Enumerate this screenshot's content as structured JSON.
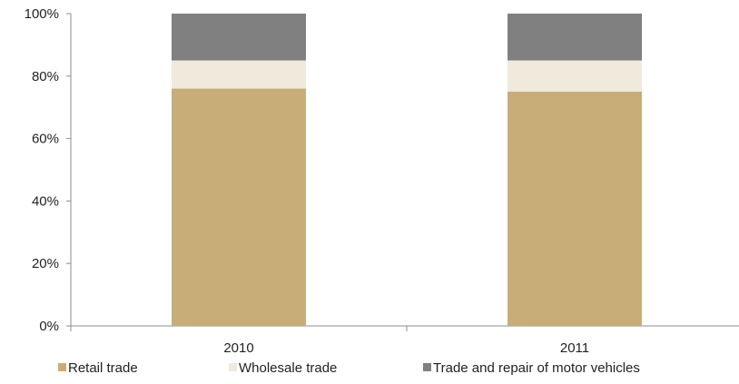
{
  "chart_data": {
    "type": "bar",
    "stacked": true,
    "categories": [
      "2010",
      "2011"
    ],
    "series": [
      {
        "name": "Retail trade",
        "values": [
          76,
          75
        ],
        "color": "#c9ad78"
      },
      {
        "name": "Wholesale trade",
        "values": [
          9,
          10
        ],
        "color": "#efeadb"
      },
      {
        "name": "Trade and repair of motor vehicles",
        "values": [
          15,
          15
        ],
        "color": "#808080"
      }
    ],
    "ylim": [
      0,
      100
    ],
    "yticks": [
      "0%",
      "20%",
      "40%",
      "60%",
      "80%",
      "100%"
    ],
    "ytick_values": [
      0,
      20,
      40,
      60,
      80,
      100
    ],
    "grid": false,
    "legend_position": "bottom",
    "title": "",
    "xlabel": "",
    "ylabel": ""
  }
}
